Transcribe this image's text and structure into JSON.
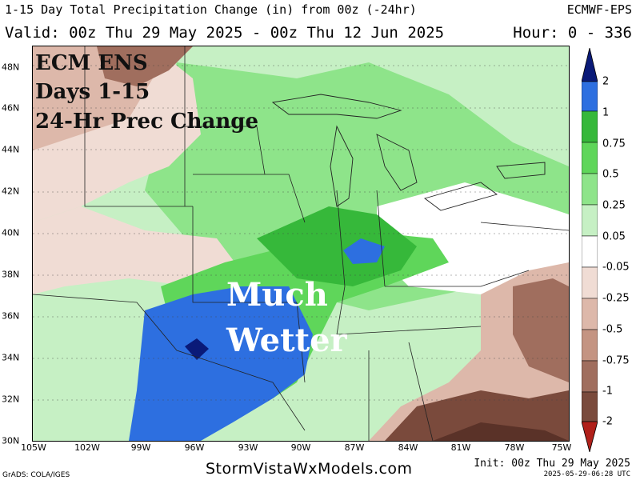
{
  "header": {
    "title": "1-15 Day Total Precipitation Change (in) from 00z (-24hr)",
    "model": "ECMWF-EPS",
    "valid": "Valid: 00z Thu 29 May 2025 - 00z Thu 12 Jun 2025",
    "hour": "Hour: 0 - 336"
  },
  "overlay": {
    "line1": "ECM ENS",
    "line2": "Days 1-15",
    "line3": "24-Hr Prec Change",
    "annotation_line1": "Much",
    "annotation_line2": "Wetter"
  },
  "axes": {
    "lat_labels": [
      "48N",
      "46N",
      "44N",
      "42N",
      "40N",
      "38N",
      "36N",
      "34N",
      "32N",
      "30N"
    ],
    "lon_labels": [
      "105W",
      "102W",
      "99W",
      "96W",
      "93W",
      "90W",
      "87W",
      "84W",
      "81W",
      "78W",
      "75W"
    ]
  },
  "legend": {
    "labels": [
      "2",
      "1",
      "0.75",
      "0.5",
      "0.25",
      "0.05",
      "-0.05",
      "-0.25",
      "-0.5",
      "-0.75",
      "-1",
      "-2"
    ],
    "colors": {
      "dark_blue": "#0a1a78",
      "blue": "#2d6fe0",
      "green_dark": "#36b83a",
      "green": "#5fd65a",
      "green_mid": "#8ee48a",
      "green_light": "#c6f0c4",
      "white": "#ffffff",
      "tan_light": "#f0dcd4",
      "tan": "#ddb8aa",
      "brown_light": "#c49482",
      "brown": "#a06e5e",
      "brown_dark": "#7a4a3c",
      "brown_darkest": "#5a3228",
      "red": "#b0201a"
    }
  },
  "footer": {
    "site": "StormVistaWxModels.com",
    "init": "Init: 00z Thu 29 May 2025",
    "stamp": "2025-05-29-06:28 UTC",
    "grads": "GrADS: COLA/IGES"
  }
}
